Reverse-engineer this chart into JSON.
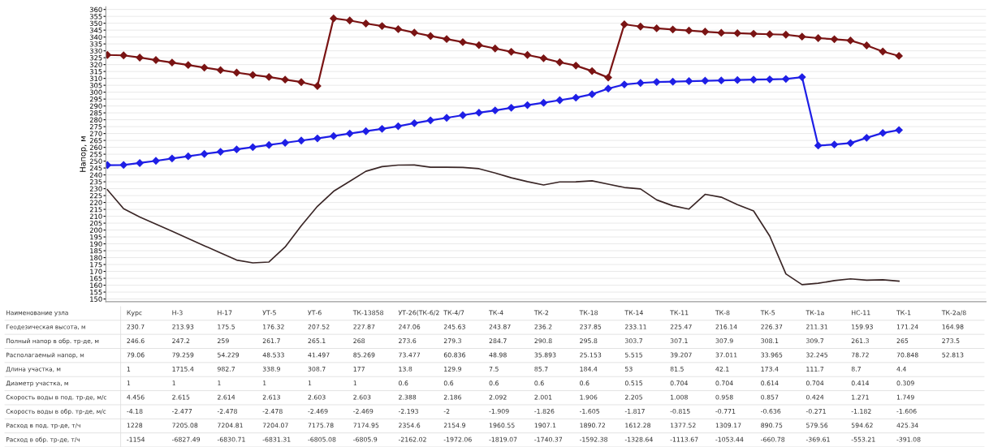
{
  "chart_data": [
    {
      "type": "line",
      "ylabel": "Напор, м",
      "categories": [
        null,
        null,
        null,
        null,
        null,
        null,
        null,
        null,
        null,
        null,
        null,
        null,
        null,
        null,
        null,
        null,
        null,
        null,
        null,
        null,
        null,
        null,
        null,
        null,
        null,
        null,
        null,
        null,
        null,
        null,
        null,
        null,
        null,
        null,
        null,
        null,
        null,
        null,
        null,
        null,
        null,
        null,
        null,
        null,
        null,
        null,
        null,
        null,
        null,
        null
      ],
      "series": [
        {
          "color": "#7a1414",
          "marker": "diamond",
          "values": [
            327,
            326.7,
            325.1,
            323.3,
            321.5,
            319.7,
            317.8,
            316.0,
            314.2,
            312.5,
            311.0,
            309.1,
            307.3,
            304.5,
            353.5,
            352,
            349.8,
            348.0,
            345.7,
            343.2,
            340.7,
            338.5,
            336.3,
            334.1,
            331.7,
            329.3,
            327.0,
            324.6,
            321.7,
            319.3,
            315.3,
            310.6,
            349.2,
            347.6,
            346.3,
            345.5,
            344.7,
            343.9,
            343.1,
            342.8,
            342.4,
            342.0,
            341.7,
            340.3,
            339.2,
            338.4,
            337.5,
            333.9,
            329.5,
            326.3
          ]
        },
        {
          "color": "#1f1fe6",
          "marker": "diamond",
          "values": [
            247.1,
            247.2,
            248.6,
            250.2,
            251.9,
            253.5,
            255.2,
            256.8,
            258.5,
            260.1,
            261.7,
            263.3,
            264.9,
            266.5,
            268.2,
            270.0,
            271.7,
            273.4,
            275.3,
            277.5,
            279.6,
            281.4,
            283.3,
            285.1,
            286.8,
            288.7,
            290.6,
            292.3,
            294.2,
            296.0,
            298.5,
            302.6,
            305.6,
            306.7,
            307.4,
            307.6,
            308.0,
            308.3,
            308.5,
            308.8,
            309.1,
            309.3,
            309.6,
            310.9,
            261.3,
            262.0,
            263.1,
            266.9,
            270.4,
            272.5
          ]
        },
        {
          "color": "#3a2626",
          "marker": "none",
          "values": [
            229.2,
            215.5,
            209.5,
            204.3,
            199.1,
            193.8,
            188.6,
            183.4,
            178.2,
            176.2,
            176.8,
            187.7,
            203.1,
            217.2,
            228.1,
            235.3,
            242.6,
            246.0,
            247.1,
            247.2,
            245.6,
            245.6,
            245.4,
            244.5,
            241.4,
            237.9,
            235.1,
            232.7,
            234.9,
            235.0,
            235.7,
            233.3,
            230.9,
            229.8,
            221.9,
            217.6,
            215.2,
            225.9,
            223.8,
            218.4,
            213.9,
            195.6,
            168.2,
            160.4,
            161.4,
            163.3,
            164.6,
            163.6,
            163.9,
            162.9
          ]
        }
      ],
      "ylim": [
        148,
        362
      ],
      "yticks": [
        150,
        155,
        160,
        165,
        170,
        175,
        180,
        185,
        190,
        195,
        200,
        205,
        210,
        215,
        220,
        225,
        230,
        235,
        240,
        245,
        250,
        255,
        260,
        265,
        270,
        275,
        280,
        285,
        290,
        295,
        300,
        305,
        310,
        315,
        320,
        325,
        330,
        335,
        340,
        345,
        350,
        355,
        360
      ],
      "grid": "y"
    },
    {
      "type": "other",
      "y_categories": [
        "Наименование узла",
        "Геодезическая высота, м",
        "Полный напор в обр. тр-де, м",
        "Располагаемый напор, м",
        "Длина участка, м",
        "Диаметр участка, м",
        "Скорость воды в под. тр-де, м/с",
        "Скорость воды в обр. тр-де, м/с",
        "Расход в под. тр-де, т/ч",
        "Расход в обр. тр-де, т/ч"
      ],
      "cell_labels": [
        [
          "Курс",
          "Н-3",
          "Н-17",
          "УТ-5",
          "УТ-6",
          "ТК-13858",
          "УТ-26(ТК-6/2",
          "ТК-4/7",
          "ТК-4",
          "ТК-2",
          "ТК-18",
          "ТК-14",
          "ТК-11",
          "ТК-8",
          "ТК-5",
          "ТК-1а",
          "НС-11",
          "ТК-1",
          "ТК-2а/8"
        ],
        [
          "230.7",
          "213.93",
          "175.5",
          "176.32",
          "207.52",
          "227.87",
          "247.06",
          "245.63",
          "243.87",
          "236.2",
          "237.85",
          "233.11",
          "225.47",
          "216.14",
          "226.37",
          "211.31",
          "159.93",
          "171.24",
          "164.98"
        ],
        [
          "246.6",
          "247.2",
          "259",
          "261.7",
          "265.1",
          "268",
          "273.6",
          "279.3",
          "284.7",
          "290.8",
          "295.8",
          "303.7",
          "307.1",
          "307.9",
          "308.1",
          "309.7",
          "261.3",
          "265",
          "273.5"
        ],
        [
          "79.06",
          "79.259",
          "54.229",
          "48.533",
          "41.497",
          "85.269",
          "73.477",
          "60.836",
          "48.98",
          "35.893",
          "25.153",
          "5.515",
          "39.207",
          "37.011",
          "33.965",
          "32.245",
          "78.72",
          "70.848",
          "52.813"
        ],
        [
          "1",
          "1715.4",
          "982.7",
          "338.9",
          "308.7",
          "177",
          "13.8",
          "129.9",
          "7.5",
          "85.7",
          "184.4",
          "53",
          "81.5",
          "42.1",
          "173.4",
          "111.7",
          "8.7",
          "4.4",
          null
        ],
        [
          "1",
          "1",
          "1",
          "1",
          "1",
          "1",
          "0.6",
          "0.6",
          "0.6",
          "0.6",
          "0.6",
          "0.515",
          "0.704",
          "0.704",
          "0.614",
          "0.704",
          "0.414",
          "0.309",
          null
        ],
        [
          "4.456",
          "2.615",
          "2.614",
          "2.613",
          "2.603",
          "2.603",
          "2.388",
          "2.186",
          "2.092",
          "2.001",
          "1.906",
          "2.205",
          "1.008",
          "0.958",
          "0.857",
          "0.424",
          "1.271",
          "1.749",
          null
        ],
        [
          "-4.18",
          "-2.477",
          "-2.478",
          "-2.478",
          "-2.469",
          "-2.469",
          "-2.193",
          "-2",
          "-1.909",
          "-1.826",
          "-1.605",
          "-1.817",
          "-0.815",
          "-0.771",
          "-0.636",
          "-0.271",
          "-1.182",
          "-1.606",
          null
        ],
        [
          "1228",
          "7205.08",
          "7204.81",
          "7204.07",
          "7175.78",
          "7174.95",
          "2354.6",
          "2154.9",
          "1960.55",
          "1907.1",
          "1890.72",
          "1612.28",
          "1377.52",
          "1309.17",
          "890.75",
          "579.56",
          "594.62",
          "425.34",
          null
        ],
        [
          "-1154",
          "-6827.49",
          "-6830.71",
          "-6831.31",
          "-6805.08",
          "-6805.9",
          "-2162.02",
          "-1972.06",
          "-1819.07",
          "-1740.37",
          "-1592.38",
          "-1328.64",
          "-1113.67",
          "-1053.44",
          "-660.78",
          "-369.61",
          "-553.21",
          "-391.08",
          null
        ]
      ]
    }
  ]
}
